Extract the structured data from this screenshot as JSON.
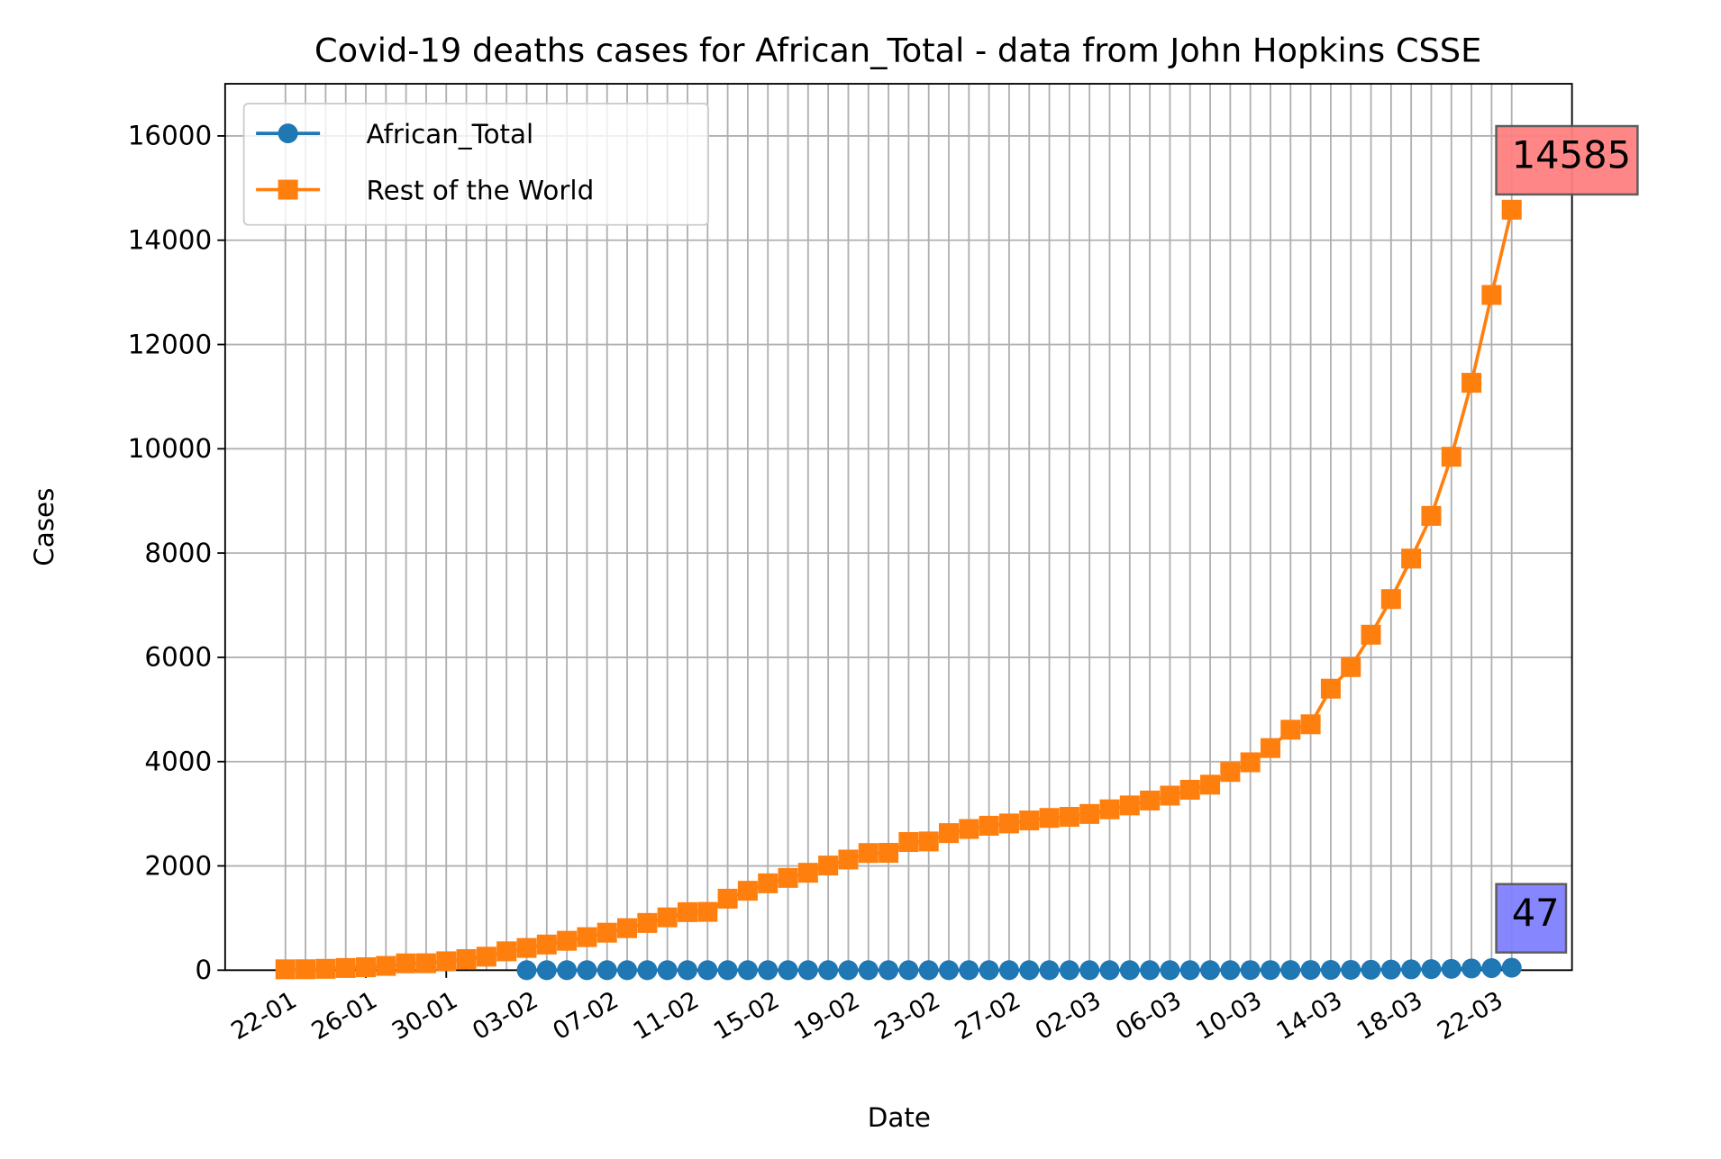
{
  "chart_data": {
    "type": "line",
    "title": "Covid-19 deaths cases for African_Total - data from John Hopkins CSSE",
    "x_label": "Date",
    "y_label": "Cases",
    "categories": [
      "22-01",
      null,
      null,
      null,
      "26-01",
      null,
      null,
      null,
      "30-01",
      null,
      null,
      null,
      "03-02",
      null,
      null,
      null,
      "07-02",
      null,
      null,
      null,
      "11-02",
      null,
      null,
      null,
      "15-02",
      null,
      null,
      null,
      "19-02",
      null,
      null,
      null,
      "23-02",
      null,
      null,
      null,
      "27-02",
      null,
      null,
      null,
      "02-03",
      null,
      null,
      null,
      "06-03",
      null,
      null,
      null,
      "10-03",
      null,
      null,
      null,
      "14-03",
      null,
      null,
      null,
      "18-03",
      null,
      null,
      null,
      "22-03",
      null
    ],
    "xlim": [
      -3,
      64
    ],
    "ylim": [
      0,
      17000
    ],
    "yticks": [
      0,
      2000,
      4000,
      6000,
      8000,
      10000,
      12000,
      14000,
      16000
    ],
    "grid": true,
    "legend": "upper left",
    "series": [
      {
        "name": "African_Total",
        "color": "#1f77b4",
        "marker": "circle",
        "label_color": "#8080ff",
        "values": [
          null,
          null,
          null,
          null,
          null,
          null,
          null,
          null,
          null,
          null,
          null,
          null,
          0,
          0,
          0,
          0,
          0,
          0,
          0,
          0,
          0,
          0,
          0,
          0,
          0,
          0,
          0,
          0,
          0,
          0,
          0,
          0,
          0,
          0,
          0,
          0,
          0,
          0,
          0,
          0,
          0,
          0,
          0,
          0,
          0,
          0,
          1,
          1,
          2,
          2,
          3,
          4,
          5,
          6,
          8,
          11,
          16,
          20,
          25,
          33,
          40,
          47
        ]
      },
      {
        "name": "Rest of the World",
        "color": "#ff7f0e",
        "marker": "square",
        "label_color": "#ff8080",
        "values": [
          17,
          18,
          26,
          42,
          56,
          82,
          131,
          133,
          171,
          213,
          259,
          362,
          426,
          492,
          564,
          634,
          719,
          806,
          906,
          1013,
          1113,
          1118,
          1371,
          1523,
          1666,
          1770,
          1868,
          2007,
          2122,
          2247,
          2251,
          2458,
          2469,
          2629,
          2708,
          2770,
          2814,
          2872,
          2920,
          2941,
          2996,
          3085,
          3160,
          3254,
          3348,
          3460,
          3558,
          3802,
          3987,
          4260,
          4612,
          4716,
          5399,
          5813,
          6434,
          7118,
          7894,
          8713,
          9847,
          11266,
          12950,
          14585
        ]
      }
    ]
  }
}
